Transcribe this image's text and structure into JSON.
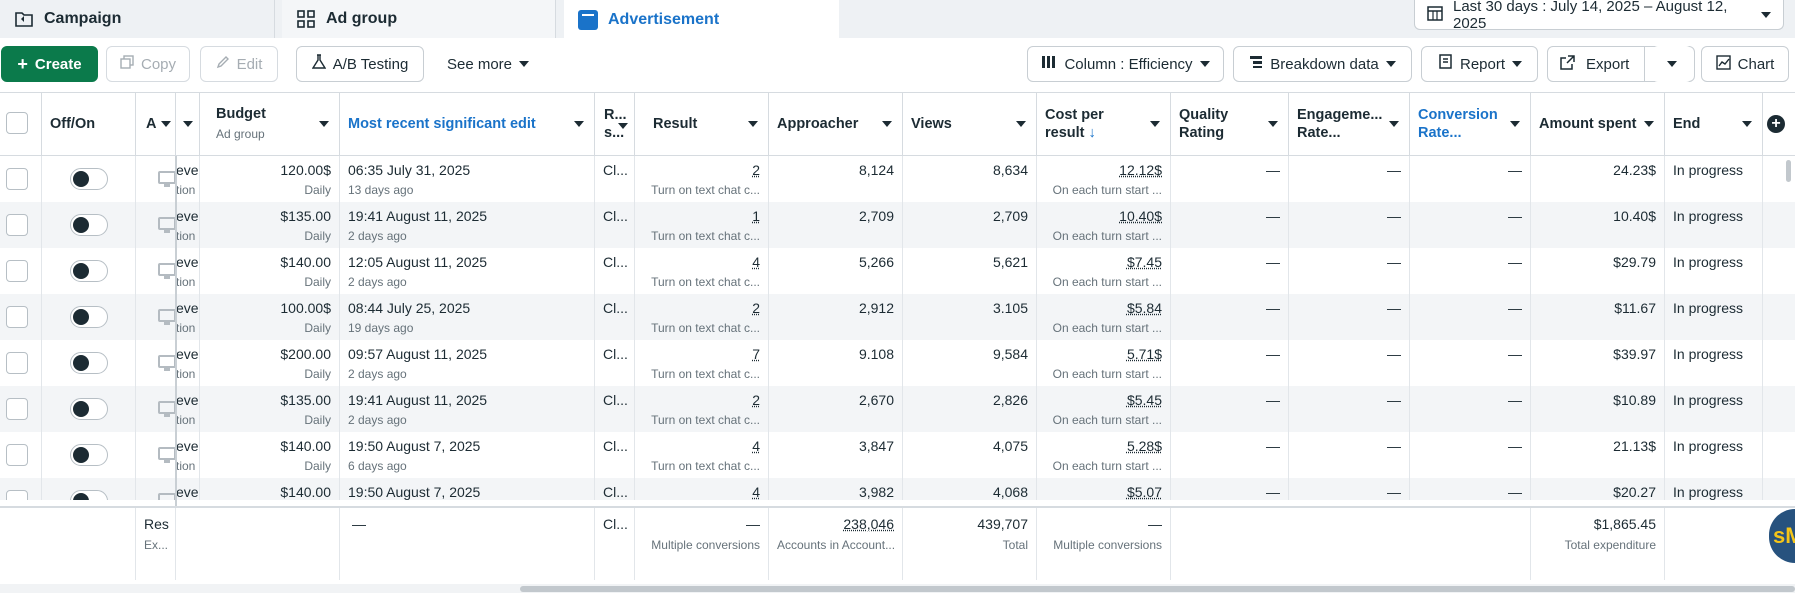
{
  "tabs": [
    {
      "label": "Campaign",
      "icon": "folder-icon"
    },
    {
      "label": "Ad group",
      "icon": "grid-icon"
    },
    {
      "label": "Advertisement",
      "icon": "ad-icon",
      "active": true
    }
  ],
  "date_range": "Last 30 days : July 14, 2025 – August 12, 2025",
  "toolbar": {
    "create": "Create",
    "copy": "Copy",
    "edit": "Edit",
    "ab_testing": "A/B Testing",
    "see_more": "See more",
    "column": "Column : Efficiency",
    "breakdown": "Breakdown data",
    "report": "Report",
    "export": "Export",
    "chart": "Chart"
  },
  "columns": {
    "offon": "Off/On",
    "a": "A",
    "budget": "Budget",
    "budget_sub": "Ad group",
    "recent_edit": "Most recent significant edit",
    "rs": "R... s...",
    "result": "Result",
    "approacher": "Approacher",
    "views": "Views",
    "cost": "Cost per result",
    "quality": "Quality Rating",
    "engagement": "Engageme... Rate...",
    "conversion": "Conversion Rate...",
    "amount": "Amount spent",
    "end": "End"
  },
  "rows": [
    {
      "lvl": "evel",
      "lvl2": "tion",
      "budget": "120.00$",
      "budget_type": "Daily",
      "edit_time": "06:35 July 31, 2025",
      "edit_ago": "13 days ago",
      "rs": "Cl...",
      "result": "2",
      "result_sub": "Turn on text chat c...",
      "approacher": "8,124",
      "views": "8,634",
      "cost": "12.12$",
      "cost_sub": "On each turn start ...",
      "quality": "—",
      "engagement": "—",
      "conversion": "—",
      "amount": "24.23$",
      "end": "In progress"
    },
    {
      "lvl": "evel",
      "lvl2": "tion",
      "budget": "$135.00",
      "budget_type": "Daily",
      "edit_time": "19:41 August 11, 2025",
      "edit_ago": "2 days ago",
      "rs": "Cl...",
      "result": "1",
      "result_sub": "Turn on text chat c...",
      "approacher": "2,709",
      "views": "2,709",
      "cost": "10.40$",
      "cost_sub": "On each turn start ...",
      "quality": "—",
      "engagement": "—",
      "conversion": "—",
      "amount": "10.40$",
      "end": "In progress"
    },
    {
      "lvl": "evel",
      "lvl2": "tion",
      "budget": "$140.00",
      "budget_type": "Daily",
      "edit_time": "12:05 August 11, 2025",
      "edit_ago": "2 days ago",
      "rs": "Cl...",
      "result": "4",
      "result_sub": "Turn on text chat c...",
      "approacher": "5,266",
      "views": "5,621",
      "cost": "$7.45",
      "cost_sub": "On each turn start ...",
      "quality": "—",
      "engagement": "—",
      "conversion": "—",
      "amount": "$29.79",
      "end": "In progress"
    },
    {
      "lvl": "evel",
      "lvl2": "tion",
      "budget": "100.00$",
      "budget_type": "Daily",
      "edit_time": "08:44 July 25, 2025",
      "edit_ago": "19 days ago",
      "rs": "Cl...",
      "result": "2",
      "result_sub": "Turn on text chat c...",
      "approacher": "2,912",
      "views": "3.105",
      "cost": "$5.84",
      "cost_sub": "On each turn start ...",
      "quality": "—",
      "engagement": "—",
      "conversion": "—",
      "amount": "$11.67",
      "end": "In progress"
    },
    {
      "lvl": "evel",
      "lvl2": "tion",
      "budget": "$200.00",
      "budget_type": "Daily",
      "edit_time": "09:57 August 11, 2025",
      "edit_ago": "2 days ago",
      "rs": "Cl...",
      "result": "7",
      "result_sub": "Turn on text chat c...",
      "approacher": "9.108",
      "views": "9,584",
      "cost": "5.71$",
      "cost_sub": "On each turn start ...",
      "quality": "—",
      "engagement": "—",
      "conversion": "—",
      "amount": "$39.97",
      "end": "In progress"
    },
    {
      "lvl": "evel",
      "lvl2": "tion",
      "budget": "$135.00",
      "budget_type": "Daily",
      "edit_time": "19:41 August 11, 2025",
      "edit_ago": "2 days ago",
      "rs": "Cl...",
      "result": "2",
      "result_sub": "Turn on text chat c...",
      "approacher": "2,670",
      "views": "2,826",
      "cost": "$5.45",
      "cost_sub": "On each turn start ...",
      "quality": "—",
      "engagement": "—",
      "conversion": "—",
      "amount": "$10.89",
      "end": "In progress"
    },
    {
      "lvl": "evel",
      "lvl2": "tion",
      "budget": "$140.00",
      "budget_type": "Daily",
      "edit_time": "19:50 August 7, 2025",
      "edit_ago": "6 days ago",
      "rs": "Cl...",
      "result": "4",
      "result_sub": "Turn on text chat c...",
      "approacher": "3,847",
      "views": "4,075",
      "cost": "5.28$",
      "cost_sub": "On each turn start ...",
      "quality": "—",
      "engagement": "—",
      "conversion": "—",
      "amount": "21.13$",
      "end": "In progress"
    },
    {
      "lvl": "evel",
      "lvl2": "",
      "budget": "$140.00",
      "budget_type": "",
      "edit_time": "19:50 August 7, 2025",
      "edit_ago": "",
      "rs": "Cl...",
      "result": "4",
      "result_sub": "",
      "approacher": "3,982",
      "views": "4,068",
      "cost": "$5.07",
      "cost_sub": "",
      "quality": "—",
      "engagement": "—",
      "conversion": "—",
      "amount": "$20.27",
      "end": "In progress"
    }
  ],
  "footer": {
    "res": "Res",
    "res_sub": "Ex...",
    "edit": "—",
    "rs": "Cl...",
    "result": "—",
    "result_sub": "Multiple conversions",
    "approacher": "238,046",
    "approacher_sub": "Accounts in Account...",
    "views": "439,707",
    "views_sub": "Total",
    "cost": "—",
    "cost_sub": "Multiple conversions",
    "amount": "$1,865.45",
    "amount_sub": "Total expenditure"
  },
  "avatar_text": "sM"
}
